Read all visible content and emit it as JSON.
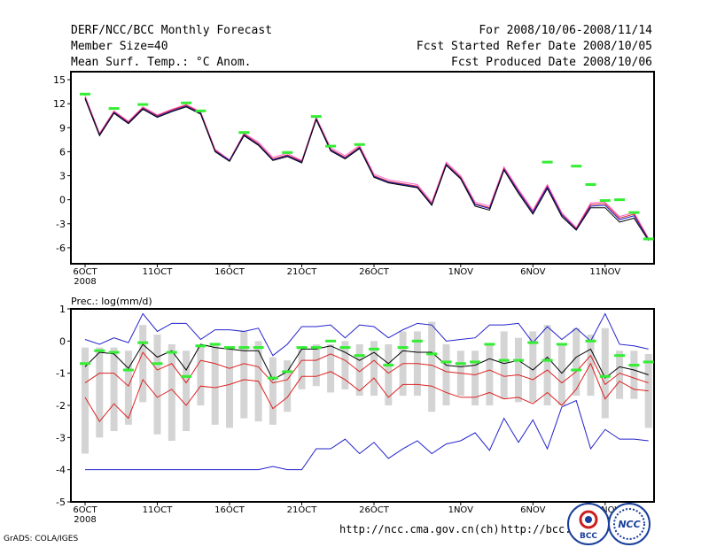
{
  "header": {
    "title": "DERF/NCC/BCC Monthly Forecast",
    "member_size": "Member Size=40",
    "variable": "Mean Surf. Temp.: °C Anom.",
    "period": "For 2008/10/06-2008/11/14",
    "started": "Fcst Started Refer Date 2008/10/05",
    "produced": "Fcst Produced Date 2008/10/06"
  },
  "colors": {
    "obs": "#33ee33",
    "red": "#dd2222",
    "blue": "#2222cc",
    "box": "#d4d4d4",
    "mean": "#000000",
    "pink": "#ff66cc"
  },
  "footer": {
    "grads": "GrADS: COLA/IGES",
    "url1": "http://ncc.cma.gov.cn(ch)",
    "url2": "http://bcc.",
    "logo1": "BCC",
    "logo2": "NCC"
  },
  "chart_data": [
    {
      "type": "line",
      "title": "Mean Surf. Temp.: °C Anom.",
      "x_tick_labels": [
        "6OCT",
        "11OCT",
        "16OCT",
        "21OCT",
        "26OCT",
        "1NOV",
        "6NOV",
        "11NOV"
      ],
      "x_tick_days": [
        1,
        6,
        11,
        16,
        21,
        27,
        32,
        37
      ],
      "first_tick_year": "2008",
      "ylim": [
        -8,
        16
      ],
      "y_ticks": [
        15,
        12,
        9,
        6,
        3,
        0,
        -3,
        -6
      ],
      "days": [
        1,
        2,
        3,
        4,
        5,
        6,
        7,
        8,
        9,
        10,
        11,
        12,
        13,
        14,
        15,
        16,
        17,
        18,
        19,
        20,
        21,
        22,
        23,
        24,
        25,
        26,
        27,
        28,
        29,
        30,
        31,
        32,
        33,
        34,
        35,
        36,
        37,
        38,
        39,
        40
      ],
      "series": [
        {
          "name": "magenta",
          "values": [
            13.0,
            8.3,
            11.1,
            9.8,
            11.6,
            10.6,
            11.3,
            11.9,
            11.0,
            6.3,
            5.0,
            8.3,
            7.2,
            5.3,
            5.8,
            4.9,
            10.3,
            6.5,
            5.5,
            6.8,
            3.2,
            2.5,
            2.2,
            1.9,
            -0.3,
            4.7,
            3.0,
            -0.3,
            -0.8,
            4.1,
            1.3,
            -1.3,
            1.9,
            -1.6,
            -3.5,
            -0.4,
            -0.3,
            -2.1,
            -1.6,
            -4.8
          ]
        },
        {
          "name": "red",
          "values": [
            12.8,
            8.2,
            11.0,
            9.7,
            11.5,
            10.5,
            11.2,
            11.8,
            10.9,
            6.2,
            4.9,
            8.2,
            7.0,
            5.1,
            5.6,
            4.8,
            10.2,
            6.3,
            5.3,
            6.6,
            3.0,
            2.3,
            2.0,
            1.7,
            -0.5,
            4.5,
            2.8,
            -0.5,
            -1.0,
            3.9,
            1.1,
            -1.5,
            1.7,
            -1.8,
            -3.6,
            -0.6,
            -0.5,
            -2.3,
            -1.8,
            -4.9
          ]
        },
        {
          "name": "blue",
          "values": [
            12.7,
            8.1,
            10.9,
            9.6,
            11.4,
            10.4,
            11.1,
            11.7,
            10.8,
            6.1,
            4.9,
            8.1,
            6.9,
            5.0,
            5.5,
            4.7,
            10.1,
            6.2,
            5.2,
            6.5,
            2.9,
            2.2,
            1.9,
            1.6,
            -0.6,
            4.4,
            2.7,
            -0.6,
            -1.1,
            3.8,
            1.0,
            -1.6,
            1.6,
            -1.9,
            -3.7,
            -0.8,
            -0.7,
            -2.5,
            -2.0,
            -5.0
          ]
        },
        {
          "name": "black",
          "values": [
            12.6,
            8.0,
            10.8,
            9.5,
            11.3,
            10.3,
            11.0,
            11.6,
            10.7,
            6.0,
            4.8,
            8.0,
            6.8,
            4.9,
            5.4,
            4.6,
            10.0,
            6.1,
            5.1,
            6.4,
            2.8,
            2.1,
            1.8,
            1.5,
            -0.7,
            4.3,
            2.6,
            -0.8,
            -1.3,
            3.7,
            0.8,
            -1.8,
            1.4,
            -2.1,
            -3.8,
            -1.0,
            -1.0,
            -2.8,
            -2.3,
            -5.1
          ]
        }
      ],
      "obs_days": [
        1,
        3,
        5,
        8,
        9,
        12,
        15,
        17,
        18,
        20,
        33,
        35,
        36,
        37,
        38,
        39,
        40
      ],
      "obs_values": [
        13.2,
        11.4,
        11.9,
        12.1,
        11.1,
        8.4,
        5.9,
        10.4,
        6.7,
        6.9,
        4.7,
        4.2,
        1.9,
        -0.1,
        0.0,
        -1.6,
        -4.9
      ]
    },
    {
      "type": "line",
      "title": "Prec.: log(mm/d)",
      "x_tick_labels": [
        "6OCT",
        "11OCT",
        "16OCT",
        "21OCT",
        "26OCT",
        "1NOV",
        "6NOV",
        "11NOV"
      ],
      "x_tick_days": [
        1,
        6,
        11,
        16,
        21,
        27,
        32,
        37
      ],
      "first_tick_year": "2008",
      "ylim": [
        -5,
        1
      ],
      "y_ticks": [
        1,
        0,
        -1,
        -2,
        -3,
        -4,
        -5
      ],
      "days": [
        1,
        2,
        3,
        4,
        5,
        6,
        7,
        8,
        9,
        10,
        11,
        12,
        13,
        14,
        15,
        16,
        17,
        18,
        19,
        20,
        21,
        22,
        23,
        24,
        25,
        26,
        27,
        28,
        29,
        30,
        31,
        32,
        33,
        34,
        35,
        36,
        37,
        38,
        39,
        40
      ],
      "boxes": {
        "low": [
          -3.5,
          -3.0,
          -2.8,
          -2.6,
          -1.9,
          -2.9,
          -3.1,
          -2.8,
          -2.0,
          -2.6,
          -2.7,
          -2.4,
          -2.5,
          -2.6,
          -2.2,
          -1.5,
          -1.4,
          -1.6,
          -1.5,
          -1.7,
          -1.7,
          -2.0,
          -1.7,
          -1.7,
          -2.2,
          -2.0,
          -1.7,
          -2.0,
          -2.0,
          -1.8,
          -1.9,
          -1.9,
          -2.0,
          -2.0,
          -1.7,
          -1.7,
          -2.4,
          -1.8,
          -1.8,
          -2.7
        ],
        "high": [
          -0.2,
          -0.2,
          -0.2,
          -0.3,
          0.5,
          0.2,
          -0.1,
          -0.3,
          -0.1,
          -0.1,
          -0.2,
          0.3,
          0.0,
          -0.5,
          -0.6,
          -0.2,
          -0.1,
          -0.1,
          0.0,
          -0.1,
          0.0,
          -0.1,
          0.3,
          0.3,
          0.6,
          -0.1,
          -0.3,
          -0.3,
          -0.1,
          0.3,
          0.1,
          0.3,
          0.5,
          -0.1,
          0.4,
          0.2,
          0.4,
          -0.3,
          -0.3,
          -0.4
        ]
      },
      "series": [
        {
          "name": "blue-upper",
          "values": [
            0.05,
            -0.1,
            0.1,
            -0.05,
            0.85,
            0.3,
            0.55,
            0.55,
            0.05,
            0.35,
            0.35,
            0.3,
            0.4,
            -0.45,
            -0.1,
            0.45,
            0.45,
            0.5,
            0.1,
            0.5,
            0.45,
            0.1,
            0.35,
            0.55,
            0.5,
            0.0,
            0.05,
            0.1,
            0.5,
            0.5,
            0.55,
            -0.05,
            0.45,
            0.05,
            0.4,
            0.0,
            0.85,
            -0.1,
            -0.15,
            -0.25
          ]
        },
        {
          "name": "black-mean",
          "values": [
            -0.8,
            -0.35,
            -0.4,
            -0.85,
            -0.1,
            -0.5,
            -0.3,
            -0.9,
            -0.1,
            -0.2,
            -0.25,
            -0.3,
            -0.3,
            -1.2,
            -0.95,
            -0.25,
            -0.25,
            -0.15,
            -0.35,
            -0.6,
            -0.35,
            -0.7,
            -0.3,
            -0.35,
            -0.35,
            -0.75,
            -0.8,
            -0.75,
            -0.55,
            -0.7,
            -0.6,
            -0.9,
            -0.5,
            -1.0,
            -0.5,
            -0.25,
            -1.15,
            -0.8,
            -0.9,
            -1.05
          ]
        },
        {
          "name": "red-mid",
          "values": [
            -1.3,
            -1.0,
            -1.0,
            -1.4,
            -0.35,
            -0.9,
            -0.7,
            -1.3,
            -0.6,
            -0.7,
            -0.85,
            -0.7,
            -0.8,
            -1.3,
            -1.2,
            -0.6,
            -0.6,
            -0.4,
            -0.6,
            -0.95,
            -0.6,
            -1.0,
            -0.7,
            -0.7,
            -0.75,
            -0.95,
            -1.0,
            -1.05,
            -0.9,
            -1.1,
            -1.05,
            -1.2,
            -0.9,
            -1.3,
            -0.95,
            -0.45,
            -1.35,
            -1.0,
            -1.15,
            -1.3
          ]
        },
        {
          "name": "red-lower",
          "values": [
            -1.75,
            -2.5,
            -1.95,
            -2.4,
            -1.2,
            -1.75,
            -1.5,
            -2.0,
            -1.4,
            -1.45,
            -1.35,
            -1.2,
            -1.25,
            -2.1,
            -1.75,
            -1.1,
            -1.1,
            -0.95,
            -1.2,
            -1.55,
            -1.15,
            -1.75,
            -1.35,
            -1.35,
            -1.4,
            -1.6,
            -1.75,
            -1.75,
            -1.6,
            -1.8,
            -1.75,
            -1.95,
            -1.6,
            -2.0,
            -1.5,
            -0.7,
            -1.8,
            -1.25,
            -1.5,
            -1.55
          ]
        },
        {
          "name": "blue-lower",
          "values": [
            -4.0,
            -4.0,
            -4.0,
            -4.0,
            -4.0,
            -4.0,
            -4.0,
            -4.0,
            -4.0,
            -4.0,
            -4.0,
            -4.0,
            -4.0,
            -3.9,
            -4.0,
            -4.0,
            -3.35,
            -3.35,
            -3.05,
            -3.5,
            -3.15,
            -3.65,
            -3.35,
            -3.1,
            -3.5,
            -3.2,
            -3.1,
            -2.85,
            -3.4,
            -2.4,
            -3.15,
            -2.45,
            -3.35,
            -2.05,
            -1.85,
            -3.35,
            -2.75,
            -3.05,
            -3.05,
            -3.1
          ]
        }
      ],
      "obs_days": [
        1,
        2,
        3,
        4,
        5,
        6,
        7,
        8,
        9,
        10,
        11,
        12,
        13,
        14,
        15,
        16,
        17,
        18,
        19,
        20,
        21,
        22,
        23,
        24,
        25,
        26,
        27,
        28,
        29,
        30,
        31,
        32,
        33,
        34,
        35,
        36,
        37,
        38,
        39,
        40
      ],
      "obs_values": [
        -0.7,
        -0.3,
        -0.35,
        -0.9,
        -0.05,
        -0.7,
        -0.35,
        -1.1,
        -0.15,
        -0.1,
        -0.2,
        -0.2,
        -0.2,
        -1.15,
        -0.95,
        -0.2,
        -0.2,
        0.0,
        -0.2,
        -0.45,
        -0.25,
        -0.75,
        -0.2,
        0.0,
        -0.4,
        -0.65,
        -0.7,
        -0.65,
        -0.1,
        -0.6,
        -0.6,
        -0.05,
        -0.6,
        -0.1,
        -0.9,
        0.0,
        -1.1,
        -0.45,
        -0.75,
        -0.65
      ]
    }
  ]
}
